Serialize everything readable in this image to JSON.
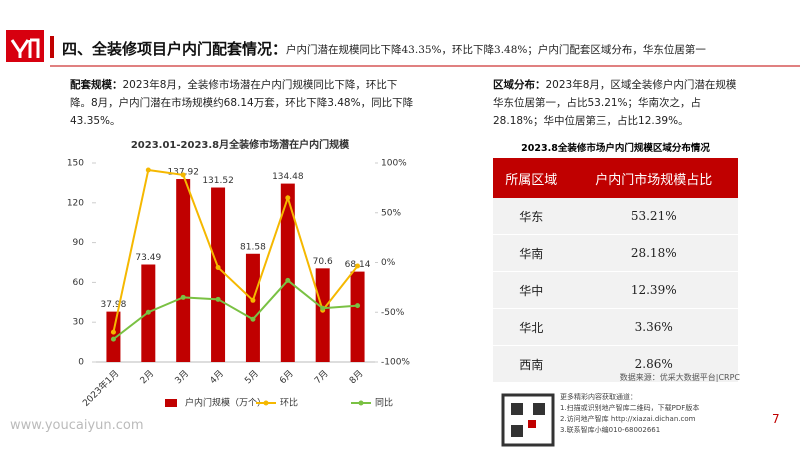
{
  "header": {
    "title": "四、全装修项目户内门配套情况：",
    "subtitle": "户内门潜在规模同比下降43.35%，环比下降3.48%；户内门配套区域分布，华东位居第一"
  },
  "left_text": {
    "label": "配套规模：",
    "body": "2023年8月，全装修市场潜在户内门规模同比下降，环比下降。8月，户内门潜在市场规模约68.14万套，环比下降3.48%，同比下降43.35%。"
  },
  "right_text": {
    "label": "区域分布：",
    "body": "2023年8月，区域全装修户内门潜在规模华东位居第一，占比53.21%；华南次之，占28.18%；华中位居第三，占比12.39%。"
  },
  "chart_data": {
    "type": "bar",
    "title": "2023.01-2023.8月全装修市场潜在户内门规模",
    "categories": [
      "2023年1月",
      "2月",
      "3月",
      "4月",
      "5月",
      "6月",
      "7月",
      "8月"
    ],
    "series": [
      {
        "name": "户内门规模（万个）",
        "type": "bar",
        "color": "#c00000",
        "values": [
          37.98,
          73.49,
          137.92,
          131.52,
          81.58,
          134.48,
          70.6,
          68.14
        ]
      },
      {
        "name": "环比",
        "type": "line",
        "axis": "y2",
        "color": "#f5b800",
        "values": [
          -70,
          93,
          88,
          -5,
          -38,
          65,
          -48,
          -3.48
        ]
      },
      {
        "name": "同比",
        "type": "line",
        "axis": "y2",
        "color": "#7ac143",
        "values": [
          -77,
          -50,
          -35,
          -37,
          -57,
          -18,
          -46,
          -43.35
        ]
      }
    ],
    "ylim": [
      0,
      150
    ],
    "yticks": [
      0,
      30,
      60,
      90,
      120,
      150
    ],
    "y2lim": [
      -100,
      100
    ],
    "y2ticks": [
      {
        "value": -100,
        "label": "-100%"
      },
      {
        "value": -50,
        "label": "-50%"
      },
      {
        "value": 0,
        "label": "0%"
      },
      {
        "value": 50,
        "label": "50%"
      },
      {
        "value": 100,
        "label": "100%"
      }
    ],
    "grid": false,
    "legend": "bottom"
  },
  "table": {
    "title": "2023.8全装修市场户内门规模区域分布情况",
    "header": [
      "所属区域",
      "户内门市场规模占比"
    ],
    "rows": [
      [
        "华东",
        "53.21%"
      ],
      [
        "华南",
        "28.18%"
      ],
      [
        "华中",
        "12.39%"
      ],
      [
        "华北",
        "3.36%"
      ],
      [
        "西南",
        "2.86%"
      ]
    ]
  },
  "source": "数据来源：优采大数据平台|CRPC",
  "footer": {
    "website": "www.youcaiyun.com",
    "qr_lines": [
      "更多精彩内容获取通道：",
      "1.扫描或识别地产智库二维码，下载PDF版本",
      "2.访问地产智库 http://xiazai.dichan.com",
      "3.联系智库小编010-68002661"
    ],
    "page": "7"
  }
}
